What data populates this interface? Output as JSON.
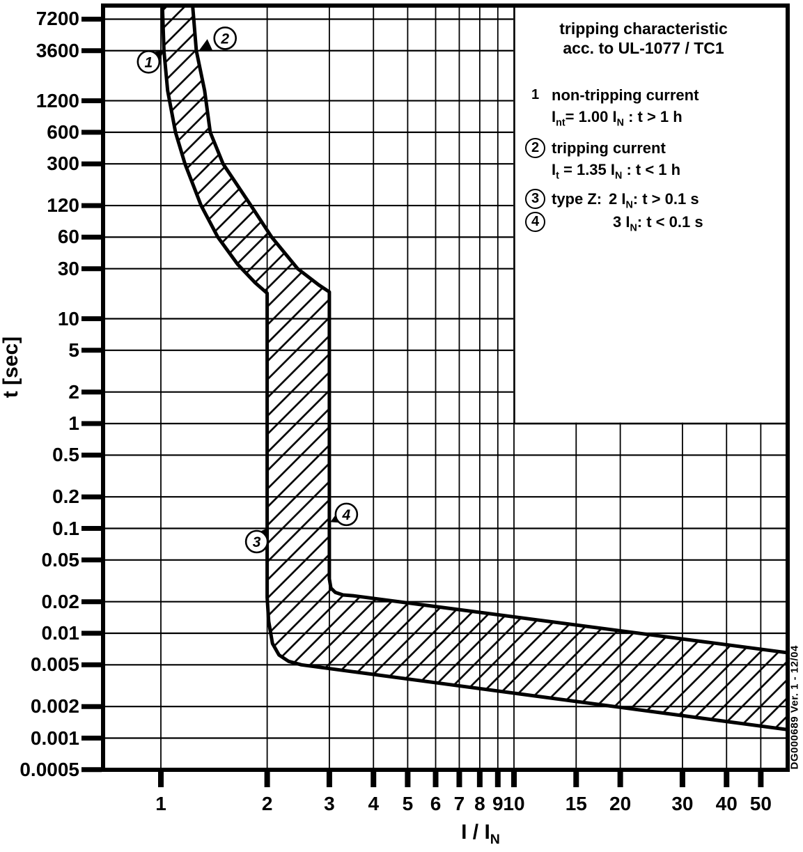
{
  "page": {
    "background": "#ffffff",
    "ink": "#000000"
  },
  "side_note": "DG000689  Ver. 1 - 12/04",
  "legend": {
    "title_line1": "tripping characteristic",
    "title_line2": "acc. to UL-1077 / TC1",
    "items": [
      {
        "num": "1",
        "circled": false,
        "line1": "non-tripping current",
        "line2": "I_{nt}= 1.00 I_{N} : t > 1 h"
      },
      {
        "num": "2",
        "circled": true,
        "line1": "tripping current",
        "line2": "I_{t} = 1.35 I_{N} : t < 1 h"
      },
      {
        "num": "3",
        "circled": true,
        "prefix": "type Z:",
        "text": "2 I_{N}: t > 0.1 s"
      },
      {
        "num": "4",
        "circled": true,
        "text": "3 I_{N}: t < 0.1 s"
      }
    ]
  },
  "chart_data": {
    "type": "area",
    "title": "tripping characteristic acc. to UL-1077 / TC1",
    "grid": true,
    "x_axis": {
      "label": "I / I_{N}",
      "scale": "log",
      "range": [
        0.69,
        59.6
      ],
      "ticks": [
        {
          "v": 1,
          "label": "1"
        },
        {
          "v": 2,
          "label": "2"
        },
        {
          "v": 3,
          "label": "3"
        },
        {
          "v": 4,
          "label": "4"
        },
        {
          "v": 5,
          "label": "5"
        },
        {
          "v": 6,
          "label": "6"
        },
        {
          "v": 7,
          "label": "7"
        },
        {
          "v": 8,
          "label": "8"
        },
        {
          "v": 9,
          "label": "9"
        },
        {
          "v": 10,
          "label": "10"
        },
        {
          "v": 15,
          "label": "15"
        },
        {
          "v": 20,
          "label": "20"
        },
        {
          "v": 30,
          "label": "30"
        },
        {
          "v": 40,
          "label": "40"
        },
        {
          "v": 50,
          "label": "50"
        }
      ]
    },
    "y_axis": {
      "label": "t [sec]",
      "scale": "log",
      "range": [
        0.0005,
        9700
      ],
      "ticks": [
        {
          "v": 7200,
          "label": "7200"
        },
        {
          "v": 3600,
          "label": "3600"
        },
        {
          "v": 1200,
          "label": "1200"
        },
        {
          "v": 600,
          "label": "600"
        },
        {
          "v": 300,
          "label": "300"
        },
        {
          "v": 120,
          "label": "120"
        },
        {
          "v": 60,
          "label": "60"
        },
        {
          "v": 30,
          "label": "30"
        },
        {
          "v": 10,
          "label": "10"
        },
        {
          "v": 5,
          "label": "5"
        },
        {
          "v": 2,
          "label": "2"
        },
        {
          "v": 1,
          "label": "1"
        },
        {
          "v": 0.5,
          "label": "0.5"
        },
        {
          "v": 0.2,
          "label": "0.2"
        },
        {
          "v": 0.1,
          "label": "0.1"
        },
        {
          "v": 0.05,
          "label": "0.05"
        },
        {
          "v": 0.02,
          "label": "0.02"
        },
        {
          "v": 0.01,
          "label": "0.01"
        },
        {
          "v": 0.005,
          "label": "0.005"
        },
        {
          "v": 0.002,
          "label": "0.002"
        },
        {
          "v": 0.001,
          "label": "0.001"
        },
        {
          "v": 0.0005,
          "label": "0.0005"
        }
      ]
    },
    "band": {
      "name": "tripping-region",
      "fill": "hatched",
      "lower_boundary": [
        [
          1.01,
          9700
        ],
        [
          1.02,
          3600
        ],
        [
          1.045,
          1500
        ],
        [
          1.1,
          600
        ],
        [
          1.17,
          300
        ],
        [
          1.3,
          120
        ],
        [
          1.45,
          60
        ],
        [
          1.65,
          33
        ],
        [
          1.85,
          22
        ],
        [
          2.0,
          17.5
        ],
        [
          2.0,
          0.022
        ],
        [
          2.02,
          0.013
        ],
        [
          2.07,
          0.008
        ],
        [
          2.16,
          0.0062
        ],
        [
          2.3,
          0.0054
        ],
        [
          2.5,
          0.005
        ],
        [
          60,
          0.0012
        ]
      ],
      "upper_boundary": [
        [
          1.23,
          9700
        ],
        [
          1.26,
          3600
        ],
        [
          1.33,
          1500
        ],
        [
          1.38,
          600
        ],
        [
          1.5,
          300
        ],
        [
          1.8,
          120
        ],
        [
          2.06,
          60
        ],
        [
          2.44,
          30
        ],
        [
          2.8,
          21
        ],
        [
          3.0,
          18
        ],
        [
          3.0,
          0.033
        ],
        [
          3.03,
          0.027
        ],
        [
          3.12,
          0.0245
        ],
        [
          3.28,
          0.0232
        ],
        [
          3.5,
          0.0228
        ],
        [
          60,
          0.0065
        ]
      ]
    },
    "markers": [
      {
        "label": "1",
        "x": 1.02,
        "t": 3600,
        "offset": [
          -22,
          16
        ]
      },
      {
        "label": "2",
        "x": 1.285,
        "t": 3650,
        "offset": [
          37,
          -17
        ]
      },
      {
        "label": "3",
        "x": 2.0,
        "t": 0.1,
        "offset": [
          -15,
          19
        ]
      },
      {
        "label": "4",
        "x": 3.02,
        "t": 0.115,
        "offset": [
          23,
          -11
        ]
      }
    ]
  }
}
